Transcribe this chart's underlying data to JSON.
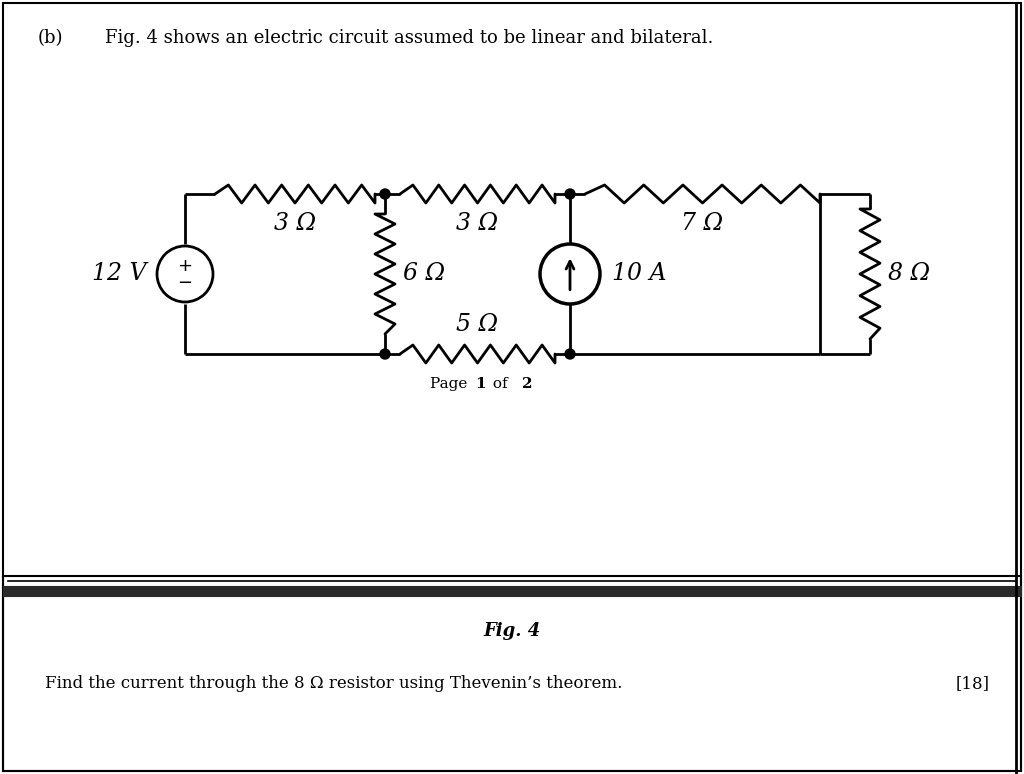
{
  "title_b": "(b)",
  "title_text": "Fig. 4 shows an electric circuit assumed to be linear and bilateral.",
  "fig4_label": "Fig. 4",
  "bottom_text": "Find the current through the 8 Ω resistor using Thevenin’s theorem.",
  "marks_text": "[18]",
  "bg_color": "#ffffff",
  "line_color": "#000000",
  "resistor_3ohm_1_label": "3 Ω",
  "resistor_3ohm_2_label": "3 Ω",
  "resistor_7ohm_label": "7 Ω",
  "resistor_6ohm_label": "6 Ω",
  "resistor_5ohm_label": "5 Ω",
  "resistor_8ohm_label": "8 Ω",
  "voltage_source_label": "12 V",
  "current_source_label": "10 A",
  "page_label_normal": "Page ",
  "page_label_bold": "1",
  "page_label_end": " of ",
  "page_label_bold2": "2"
}
